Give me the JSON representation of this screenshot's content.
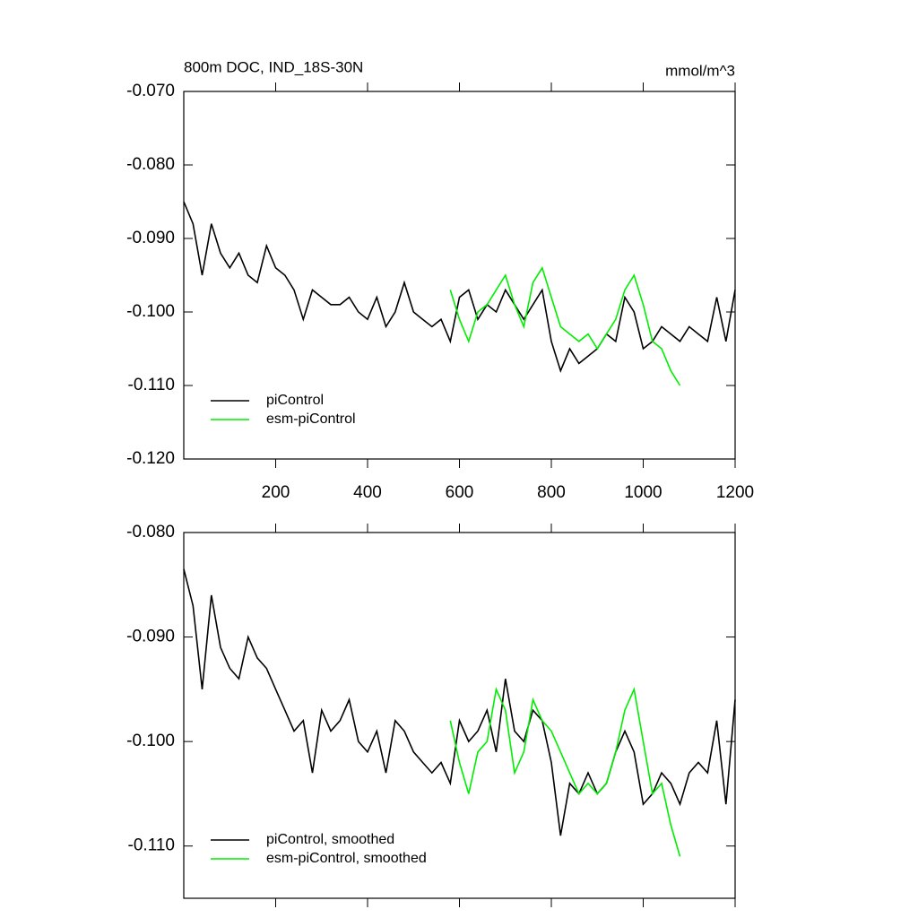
{
  "chart_data": [
    {
      "type": "line",
      "title": "800m DOC, IND_18S-30N",
      "units": "mmol/m^3",
      "xlim": [
        0,
        1200
      ],
      "xticks": [
        200,
        400,
        600,
        800,
        1000,
        1200
      ],
      "ylim": [
        -0.12,
        -0.07
      ],
      "yticks": [
        {
          "value": -0.12,
          "label": "-0.120"
        },
        {
          "value": -0.11,
          "label": "-0.110"
        },
        {
          "value": -0.1,
          "label": "-0.100"
        },
        {
          "value": -0.09,
          "label": "-0.090"
        },
        {
          "value": -0.08,
          "label": "-0.080"
        },
        {
          "value": -0.07,
          "label": "-0.070"
        }
      ],
      "legend": "lower left",
      "series": [
        {
          "name": "piControl",
          "color": "#000000",
          "x": [
            0,
            20,
            40,
            60,
            80,
            100,
            120,
            140,
            160,
            180,
            200,
            220,
            240,
            260,
            280,
            300,
            320,
            340,
            360,
            380,
            400,
            420,
            440,
            460,
            480,
            500,
            520,
            540,
            560,
            580,
            600,
            620,
            640,
            660,
            680,
            700,
            720,
            740,
            760,
            780,
            800,
            820,
            840,
            860,
            880,
            900,
            920,
            940,
            960,
            980,
            1000,
            1020,
            1040,
            1060,
            1080,
            1100,
            1120,
            1140,
            1160,
            1180,
            1200
          ],
          "values": [
            -0.085,
            -0.088,
            -0.095,
            -0.088,
            -0.092,
            -0.094,
            -0.092,
            -0.095,
            -0.096,
            -0.091,
            -0.094,
            -0.095,
            -0.097,
            -0.101,
            -0.097,
            -0.098,
            -0.099,
            -0.099,
            -0.098,
            -0.1,
            -0.101,
            -0.098,
            -0.102,
            -0.1,
            -0.096,
            -0.1,
            -0.101,
            -0.102,
            -0.101,
            -0.104,
            -0.098,
            -0.097,
            -0.101,
            -0.099,
            -0.1,
            -0.097,
            -0.099,
            -0.101,
            -0.099,
            -0.097,
            -0.104,
            -0.108,
            -0.105,
            -0.107,
            -0.106,
            -0.105,
            -0.103,
            -0.104,
            -0.098,
            -0.1,
            -0.105,
            -0.104,
            -0.102,
            -0.103,
            -0.104,
            -0.102,
            -0.103,
            -0.104,
            -0.098,
            -0.104,
            -0.097
          ]
        },
        {
          "name": "esm-piControl",
          "color": "#00ee00",
          "x": [
            580,
            600,
            620,
            640,
            660,
            680,
            700,
            720,
            740,
            760,
            780,
            800,
            820,
            840,
            860,
            880,
            900,
            920,
            940,
            960,
            980,
            1000,
            1020,
            1040,
            1060,
            1080
          ],
          "values": [
            -0.097,
            -0.101,
            -0.104,
            -0.1,
            -0.099,
            -0.097,
            -0.095,
            -0.099,
            -0.102,
            -0.096,
            -0.094,
            -0.098,
            -0.102,
            -0.103,
            -0.104,
            -0.103,
            -0.105,
            -0.103,
            -0.101,
            -0.097,
            -0.095,
            -0.099,
            -0.104,
            -0.105,
            -0.108,
            -0.11
          ]
        }
      ]
    },
    {
      "type": "line",
      "xlim": [
        0,
        1200
      ],
      "xticks": [
        200,
        400,
        600,
        800,
        1000,
        1200
      ],
      "ylim": [
        -0.115,
        -0.08
      ],
      "yticks": [
        {
          "value": -0.11,
          "label": "-0.110"
        },
        {
          "value": -0.1,
          "label": "-0.100"
        },
        {
          "value": -0.09,
          "label": "-0.090"
        },
        {
          "value": -0.08,
          "label": "-0.080"
        }
      ],
      "legend": "lower left",
      "series": [
        {
          "name": "piControl, smoothed",
          "color": "#000000",
          "x": [
            0,
            20,
            40,
            60,
            80,
            100,
            120,
            140,
            160,
            180,
            200,
            220,
            240,
            260,
            280,
            300,
            320,
            340,
            360,
            380,
            400,
            420,
            440,
            460,
            480,
            500,
            520,
            540,
            560,
            580,
            600,
            620,
            640,
            660,
            680,
            700,
            720,
            740,
            760,
            780,
            800,
            820,
            840,
            860,
            880,
            900,
            920,
            940,
            960,
            980,
            1000,
            1020,
            1040,
            1060,
            1080,
            1100,
            1120,
            1140,
            1160,
            1180,
            1200
          ],
          "values": [
            -0.0835,
            -0.087,
            -0.095,
            -0.086,
            -0.091,
            -0.093,
            -0.094,
            -0.09,
            -0.092,
            -0.093,
            -0.095,
            -0.097,
            -0.099,
            -0.098,
            -0.103,
            -0.097,
            -0.099,
            -0.098,
            -0.096,
            -0.1,
            -0.101,
            -0.099,
            -0.103,
            -0.098,
            -0.099,
            -0.101,
            -0.102,
            -0.103,
            -0.102,
            -0.104,
            -0.098,
            -0.1,
            -0.099,
            -0.097,
            -0.101,
            -0.094,
            -0.099,
            -0.1,
            -0.097,
            -0.098,
            -0.102,
            -0.109,
            -0.104,
            -0.105,
            -0.103,
            -0.105,
            -0.104,
            -0.101,
            -0.099,
            -0.101,
            -0.106,
            -0.105,
            -0.103,
            -0.104,
            -0.106,
            -0.103,
            -0.102,
            -0.103,
            -0.098,
            -0.106,
            -0.096
          ]
        },
        {
          "name": "esm-piControl, smoothed",
          "color": "#00ee00",
          "x": [
            580,
            600,
            620,
            640,
            660,
            680,
            700,
            720,
            740,
            760,
            780,
            800,
            820,
            840,
            860,
            880,
            900,
            920,
            940,
            960,
            980,
            1000,
            1020,
            1040,
            1060,
            1080
          ],
          "values": [
            -0.098,
            -0.102,
            -0.105,
            -0.101,
            -0.1,
            -0.095,
            -0.097,
            -0.103,
            -0.101,
            -0.096,
            -0.098,
            -0.099,
            -0.101,
            -0.103,
            -0.105,
            -0.104,
            -0.105,
            -0.104,
            -0.101,
            -0.097,
            -0.095,
            -0.1,
            -0.105,
            -0.104,
            -0.108,
            -0.111
          ]
        }
      ]
    }
  ]
}
